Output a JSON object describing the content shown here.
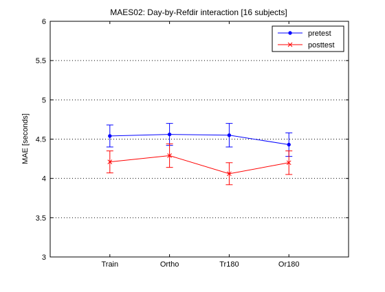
{
  "chart_data": {
    "type": "line",
    "title": "MAES02: Day-by-Refdir interaction  [16 subjects]",
    "xlabel": "",
    "ylabel": "MAE [seconds]",
    "categories": [
      "Train",
      "Ortho",
      "Tr180",
      "Or180"
    ],
    "xlim": [
      0,
      5
    ],
    "ylim": [
      3,
      6
    ],
    "yticks": [
      3,
      3.5,
      4,
      4.5,
      5,
      5.5,
      6
    ],
    "ytick_labels": [
      "3",
      "3.5",
      "4",
      "4.5",
      "5",
      "5.5",
      "6"
    ],
    "grid": "horizontal dotted",
    "legend_position": "top-right",
    "series": [
      {
        "name": "pretest",
        "color": "#0000ff",
        "marker": "dot",
        "values": [
          4.54,
          4.56,
          4.55,
          4.43
        ],
        "error": [
          0.14,
          0.14,
          0.15,
          0.15
        ]
      },
      {
        "name": "posttest",
        "color": "#ff0000",
        "marker": "x",
        "values": [
          4.21,
          4.29,
          4.06,
          4.2
        ],
        "error": [
          0.14,
          0.15,
          0.14,
          0.15
        ]
      }
    ]
  }
}
